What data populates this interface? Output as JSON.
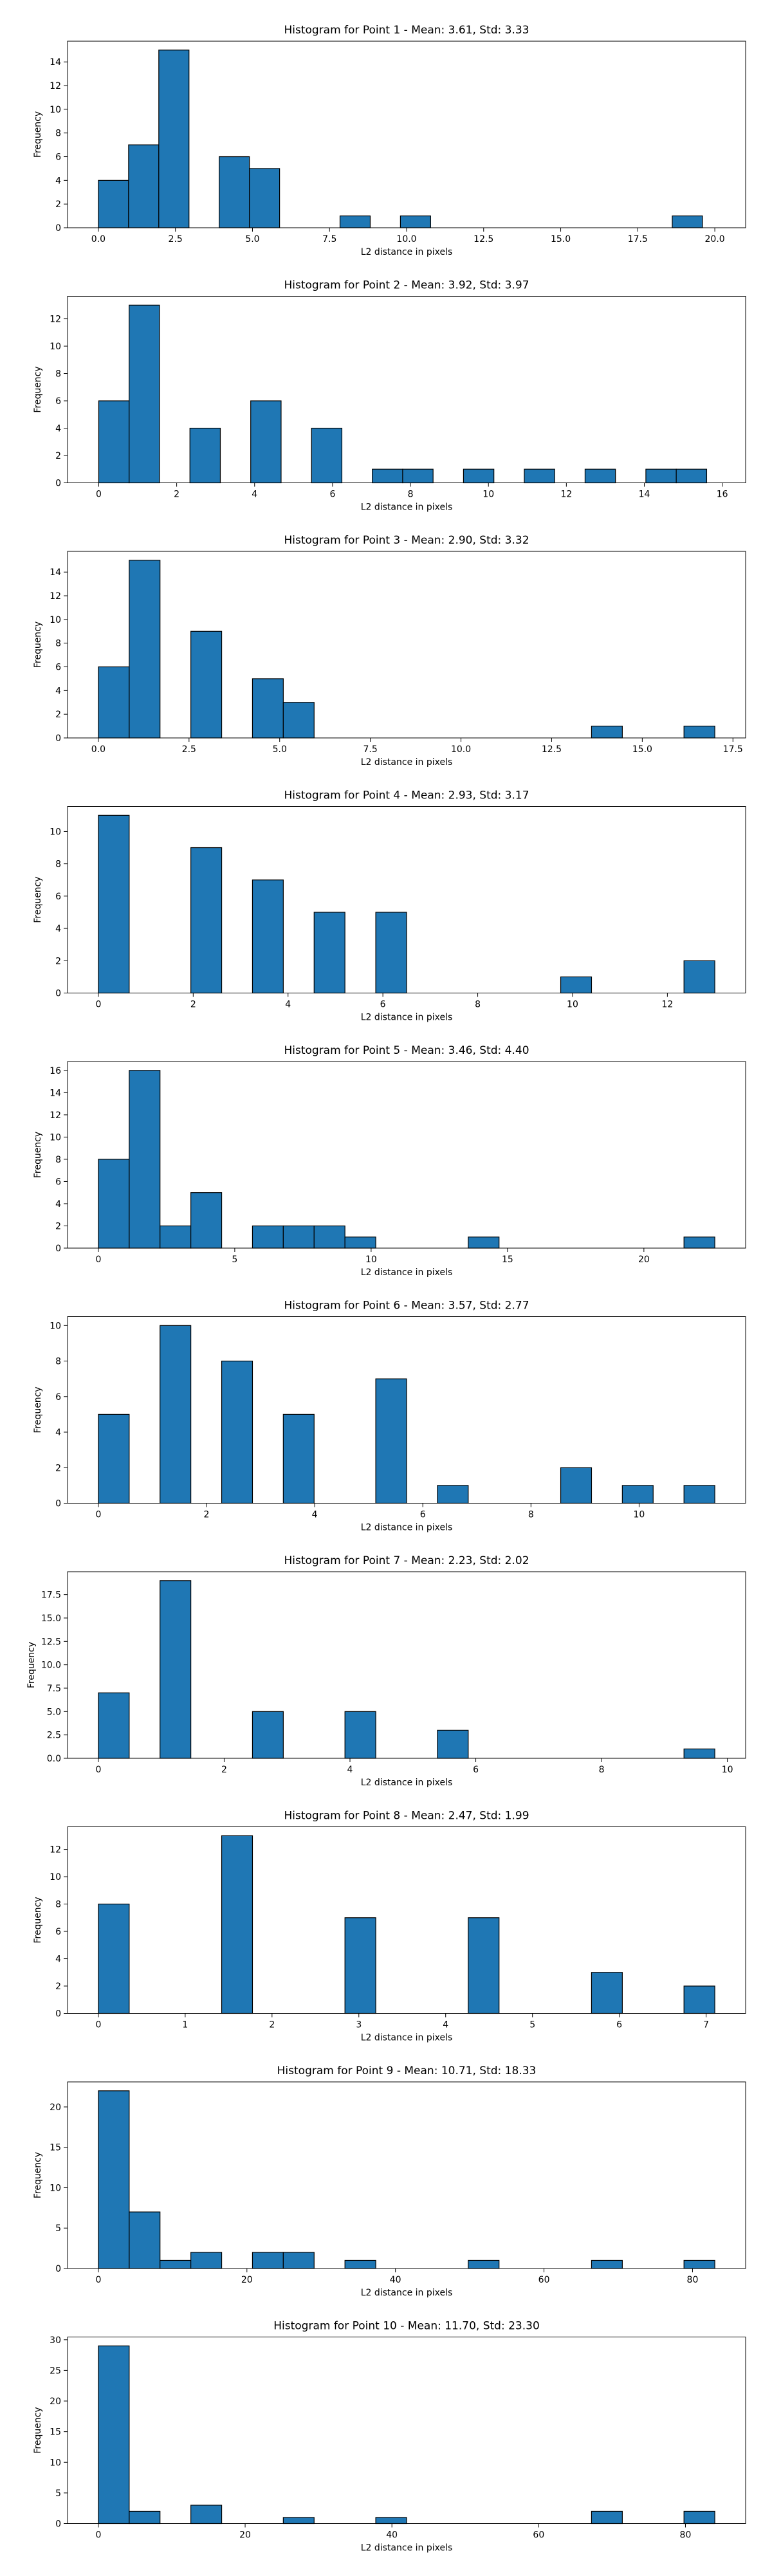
{
  "chart_data": [
    {
      "type": "bar",
      "title": "Histogram for Point 1 - Mean: 3.61, Std: 3.33",
      "xlabel": "L2 distance in pixels",
      "ylabel": "Frequency",
      "xlim": [
        -1.0,
        21.0
      ],
      "ylim": [
        0,
        15.75
      ],
      "xticks": [
        0.0,
        2.5,
        5.0,
        7.5,
        10.0,
        12.5,
        15.0,
        17.5,
        20.0
      ],
      "xticklabels": [
        "0.0",
        "2.5",
        "5.0",
        "7.5",
        "10.0",
        "12.5",
        "15.0",
        "17.5",
        "20.0"
      ],
      "yticks": [
        0,
        2,
        4,
        6,
        8,
        10,
        12,
        14
      ],
      "bin_start": 0.0,
      "bin_width": 0.98,
      "counts": [
        4,
        7,
        15,
        0,
        6,
        5,
        0,
        0,
        1,
        0,
        1,
        0,
        0,
        0,
        0,
        0,
        0,
        0,
        0,
        1
      ],
      "color": "#1f77b4"
    },
    {
      "type": "bar",
      "title": "Histogram for Point 2 - Mean: 3.92, Std: 3.97",
      "xlabel": "L2 distance in pixels",
      "ylabel": "Frequency",
      "xlim": [
        -0.8,
        16.6
      ],
      "ylim": [
        0,
        13.65
      ],
      "xticks": [
        0,
        2,
        4,
        6,
        8,
        10,
        12,
        14,
        16
      ],
      "xticklabels": [
        "0",
        "2",
        "4",
        "6",
        "8",
        "10",
        "12",
        "14",
        "16"
      ],
      "yticks": [
        0,
        2,
        4,
        6,
        8,
        10,
        12
      ],
      "bin_start": 0.0,
      "bin_width": 0.78,
      "counts": [
        6,
        13,
        0,
        4,
        0,
        6,
        0,
        4,
        0,
        1,
        1,
        0,
        1,
        0,
        1,
        0,
        1,
        0,
        1,
        1
      ],
      "color": "#1f77b4"
    },
    {
      "type": "bar",
      "title": "Histogram for Point 3 - Mean: 2.90, Std: 3.32",
      "xlabel": "L2 distance in pixels",
      "ylabel": "Frequency",
      "xlim": [
        -0.85,
        17.85
      ],
      "ylim": [
        0,
        15.75
      ],
      "xticks": [
        0.0,
        2.5,
        5.0,
        7.5,
        10.0,
        12.5,
        15.0,
        17.5
      ],
      "xticklabels": [
        "0.0",
        "2.5",
        "5.0",
        "7.5",
        "10.0",
        "12.5",
        "15.0",
        "17.5"
      ],
      "yticks": [
        0,
        2,
        4,
        6,
        8,
        10,
        12,
        14
      ],
      "bin_start": 0.0,
      "bin_width": 0.85,
      "counts": [
        6,
        15,
        0,
        9,
        0,
        5,
        3,
        0,
        0,
        0,
        0,
        0,
        0,
        0,
        0,
        0,
        1,
        0,
        0,
        1
      ],
      "color": "#1f77b4"
    },
    {
      "type": "bar",
      "title": "Histogram for Point 4 - Mean: 2.93, Std: 3.17",
      "xlabel": "L2 distance in pixels",
      "ylabel": "Frequency",
      "xlim": [
        -0.65,
        13.65
      ],
      "ylim": [
        0,
        11.55
      ],
      "xticks": [
        0,
        2,
        4,
        6,
        8,
        10,
        12
      ],
      "xticklabels": [
        "0",
        "2",
        "4",
        "6",
        "8",
        "10",
        "12"
      ],
      "yticks": [
        0,
        2,
        4,
        6,
        8,
        10
      ],
      "bin_start": 0.0,
      "bin_width": 0.65,
      "counts": [
        11,
        0,
        0,
        9,
        0,
        7,
        0,
        5,
        0,
        5,
        0,
        0,
        0,
        0,
        0,
        1,
        0,
        0,
        0,
        2
      ],
      "color": "#1f77b4"
    },
    {
      "type": "bar",
      "title": "Histogram for Point 5 - Mean: 3.46, Std: 4.40",
      "xlabel": "L2 distance in pixels",
      "ylabel": "Frequency",
      "xlim": [
        -1.13,
        23.73
      ],
      "ylim": [
        0,
        16.8
      ],
      "xticks": [
        0,
        5,
        10,
        15,
        20
      ],
      "xticklabels": [
        "0",
        "5",
        "10",
        "15",
        "20"
      ],
      "yticks": [
        0,
        2,
        4,
        6,
        8,
        10,
        12,
        14,
        16
      ],
      "bin_start": 0.0,
      "bin_width": 1.13,
      "counts": [
        8,
        16,
        2,
        5,
        0,
        2,
        2,
        2,
        1,
        0,
        0,
        0,
        1,
        0,
        0,
        0,
        0,
        0,
        0,
        1
      ],
      "color": "#1f77b4"
    },
    {
      "type": "bar",
      "title": "Histogram for Point 6 - Mean: 3.57, Std: 2.77",
      "xlabel": "L2 distance in pixels",
      "ylabel": "Frequency",
      "xlim": [
        -0.57,
        11.97
      ],
      "ylim": [
        0,
        10.5
      ],
      "xticks": [
        0,
        2,
        4,
        6,
        8,
        10
      ],
      "xticklabels": [
        "0",
        "2",
        "4",
        "6",
        "8",
        "10"
      ],
      "yticks": [
        0,
        2,
        4,
        6,
        8,
        10
      ],
      "bin_start": 0.0,
      "bin_width": 0.57,
      "counts": [
        5,
        0,
        10,
        0,
        8,
        0,
        5,
        0,
        0,
        7,
        0,
        1,
        0,
        0,
        0,
        2,
        0,
        1,
        0,
        1
      ],
      "color": "#1f77b4"
    },
    {
      "type": "bar",
      "title": "Histogram for Point 7 - Mean: 2.23, Std: 2.02",
      "xlabel": "L2 distance in pixels",
      "ylabel": "Frequency",
      "xlim": [
        -0.49,
        10.29
      ],
      "ylim": [
        0,
        19.95
      ],
      "xticks": [
        0,
        2,
        4,
        6,
        8,
        10
      ],
      "xticklabels": [
        "0",
        "2",
        "4",
        "6",
        "8",
        "10"
      ],
      "yticks": [
        0.0,
        2.5,
        5.0,
        7.5,
        10.0,
        12.5,
        15.0,
        17.5
      ],
      "yticklabels": [
        "0.0",
        "2.5",
        "5.0",
        "7.5",
        "10.0",
        "12.5",
        "15.0",
        "17.5"
      ],
      "bin_start": 0.0,
      "bin_width": 0.49,
      "counts": [
        7,
        0,
        19,
        0,
        0,
        5,
        0,
        0,
        5,
        0,
        0,
        3,
        0,
        0,
        0,
        0,
        0,
        0,
        0,
        1
      ],
      "color": "#1f77b4"
    },
    {
      "type": "bar",
      "title": "Histogram for Point 8 - Mean: 2.47, Std: 1.99",
      "xlabel": "L2 distance in pixels",
      "ylabel": "Frequency",
      "xlim": [
        -0.355,
        7.455
      ],
      "ylim": [
        0,
        13.65
      ],
      "xticks": [
        0,
        1,
        2,
        3,
        4,
        5,
        6,
        7
      ],
      "xticklabels": [
        "0",
        "1",
        "2",
        "3",
        "4",
        "5",
        "6",
        "7"
      ],
      "yticks": [
        0,
        2,
        4,
        6,
        8,
        10,
        12
      ],
      "bin_start": 0.0,
      "bin_width": 0.355,
      "counts": [
        8,
        0,
        0,
        0,
        13,
        0,
        0,
        0,
        7,
        0,
        0,
        0,
        7,
        0,
        0,
        0,
        3,
        0,
        0,
        2
      ],
      "color": "#1f77b4"
    },
    {
      "type": "bar",
      "title": "Histogram for Point 9 - Mean: 10.71, Std: 18.33",
      "xlabel": "L2 distance in pixels",
      "ylabel": "Frequency",
      "xlim": [
        -4.15,
        87.15
      ],
      "ylim": [
        0,
        23.1
      ],
      "xticks": [
        0,
        20,
        40,
        60,
        80
      ],
      "xticklabels": [
        "0",
        "20",
        "40",
        "60",
        "80"
      ],
      "yticks": [
        0,
        5,
        10,
        15,
        20
      ],
      "bin_start": 0.0,
      "bin_width": 4.15,
      "counts": [
        22,
        7,
        1,
        2,
        0,
        2,
        2,
        0,
        1,
        0,
        0,
        0,
        1,
        0,
        0,
        0,
        1,
        0,
        0,
        1
      ],
      "color": "#1f77b4"
    },
    {
      "type": "bar",
      "title": "Histogram for Point 10 - Mean: 11.70, Std: 23.30",
      "xlabel": "L2 distance in pixels",
      "ylabel": "Frequency",
      "xlim": [
        -4.2,
        88.2
      ],
      "ylim": [
        0,
        30.45
      ],
      "xticks": [
        0,
        20,
        40,
        60,
        80
      ],
      "xticklabels": [
        "0",
        "20",
        "40",
        "60",
        "80"
      ],
      "yticks": [
        0,
        5,
        10,
        15,
        20,
        25,
        30
      ],
      "bin_start": 0.0,
      "bin_width": 4.2,
      "counts": [
        29,
        2,
        0,
        3,
        0,
        0,
        1,
        0,
        0,
        1,
        0,
        0,
        0,
        0,
        0,
        0,
        2,
        0,
        0,
        2
      ],
      "color": "#1f77b4"
    }
  ]
}
